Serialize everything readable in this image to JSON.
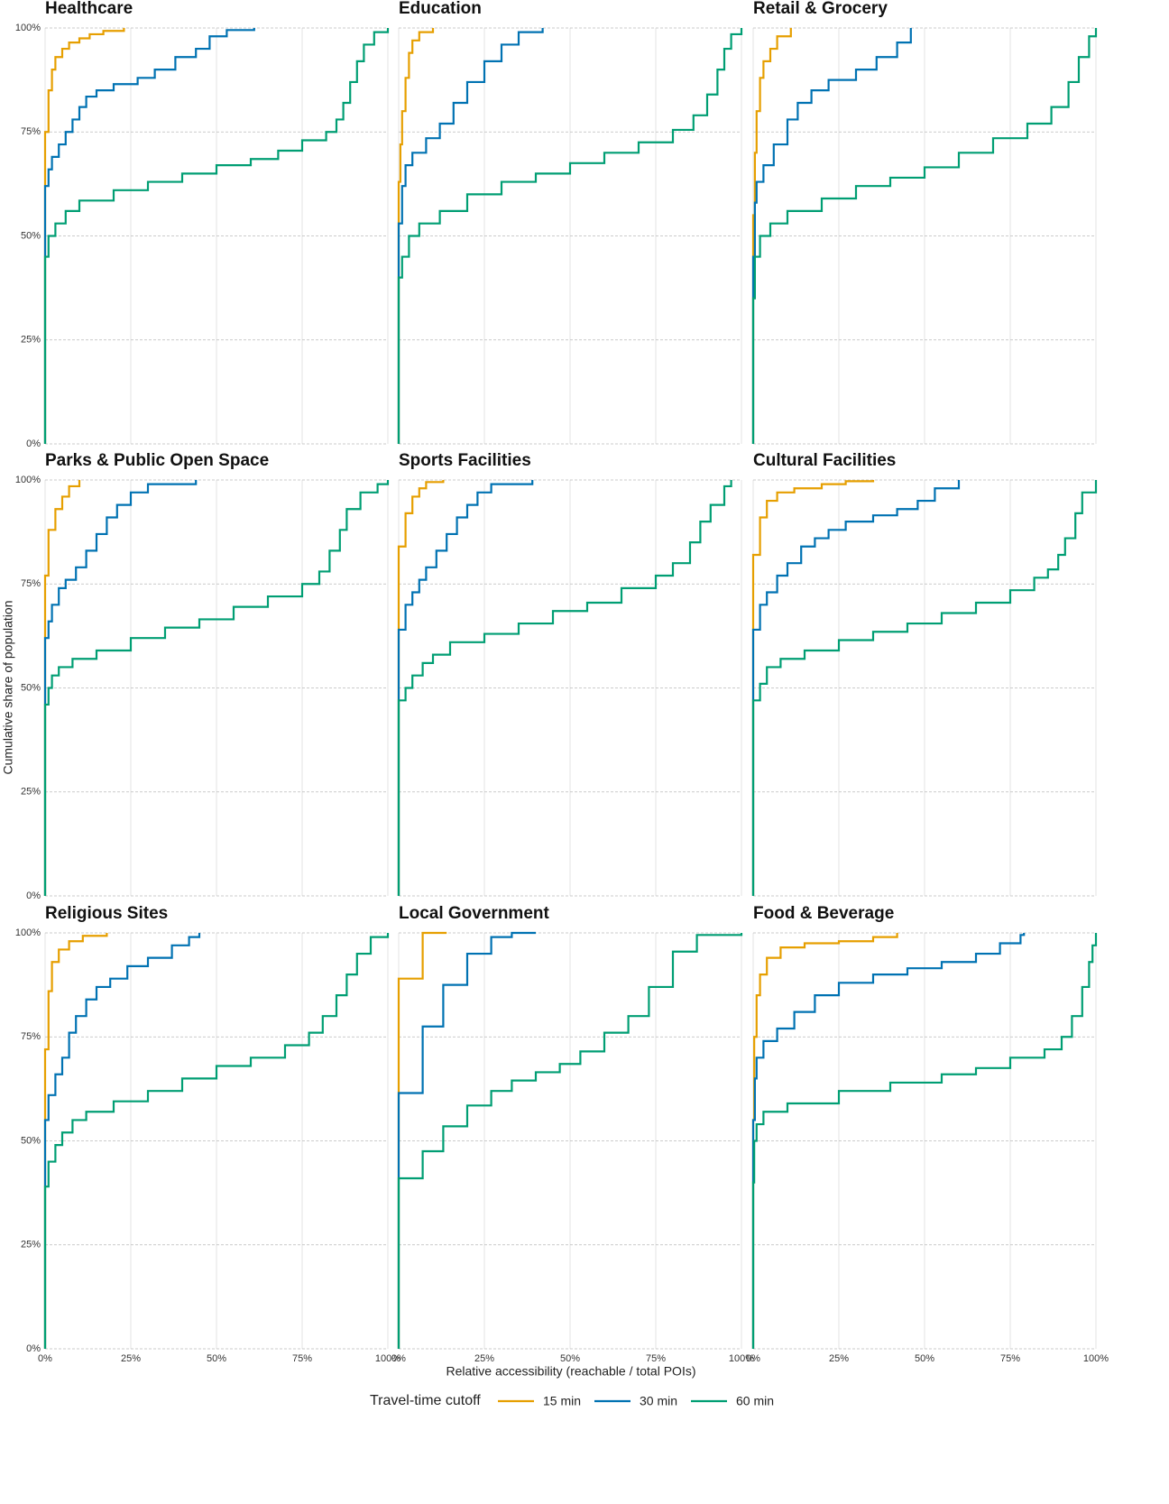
{
  "chart_data": {
    "type": "step",
    "y_label": "Cumulative share of population",
    "x_label": "Relative accessibility (reachable / total POIs)",
    "legend_title": "Travel-time cutoff",
    "series": [
      {
        "name": "15 min",
        "color": "#E69F00"
      },
      {
        "name": "30 min",
        "color": "#0072B2"
      },
      {
        "name": "60 min",
        "color": "#009E73"
      }
    ],
    "xlim": [
      0,
      100
    ],
    "ylim": [
      0,
      100
    ],
    "xticks": [
      {
        "value": 0,
        "label": "0%"
      },
      {
        "value": 25,
        "label": "25%"
      },
      {
        "value": 50,
        "label": "50%"
      },
      {
        "value": 75,
        "label": "75%"
      },
      {
        "value": 100,
        "label": "100%"
      }
    ],
    "yticks": [
      {
        "value": 0,
        "label": "0%"
      },
      {
        "value": 25,
        "label": "25%"
      },
      {
        "value": 50,
        "label": "50%"
      },
      {
        "value": 75,
        "label": "75%"
      },
      {
        "value": 100,
        "label": "100%"
      }
    ],
    "grid": true,
    "facets": [
      {
        "title": "Healthcare",
        "series": [
          {
            "x": [
              0,
              0,
              1,
              2,
              3,
              5,
              7,
              10,
              13,
              17,
              23
            ],
            "values": [
              0,
              75,
              85,
              90,
              93,
              95,
              96.5,
              97.5,
              98.5,
              99.3,
              100
            ]
          },
          {
            "x": [
              0,
              0,
              1,
              2,
              4,
              6,
              8,
              10,
              12,
              15,
              20,
              27,
              32,
              38,
              44,
              48,
              53,
              61
            ],
            "values": [
              0,
              62,
              66,
              69,
              72,
              75,
              78,
              81,
              83.5,
              85,
              86.5,
              88,
              90,
              93,
              95,
              98,
              99.5,
              100
            ]
          },
          {
            "x": [
              0,
              0,
              1,
              3,
              6,
              10,
              20,
              30,
              40,
              50,
              60,
              68,
              75,
              82,
              85,
              87,
              89,
              91,
              93,
              96,
              100
            ],
            "values": [
              0,
              45,
              50,
              53,
              56,
              58.5,
              61,
              63,
              65,
              67,
              68.5,
              70.5,
              73,
              75,
              78,
              82,
              87,
              92,
              96,
              99,
              100
            ]
          }
        ]
      },
      {
        "title": "Education",
        "series": [
          {
            "x": [
              0,
              0,
              0.5,
              1,
              2,
              3,
              4,
              6,
              10
            ],
            "values": [
              0,
              63,
              72,
              80,
              88,
              94,
              97,
              99,
              100
            ]
          },
          {
            "x": [
              0,
              0,
              1,
              2,
              4,
              8,
              12,
              16,
              20,
              25,
              30,
              35,
              42
            ],
            "values": [
              0,
              53,
              62,
              67,
              70,
              73.5,
              77,
              82,
              87,
              92,
              96,
              99,
              100
            ]
          },
          {
            "x": [
              0,
              0,
              1,
              3,
              6,
              12,
              20,
              30,
              40,
              50,
              60,
              70,
              80,
              86,
              90,
              93,
              95,
              97,
              100
            ],
            "values": [
              0,
              40,
              45,
              50,
              53,
              56,
              60,
              63,
              65,
              67.5,
              70,
              72.5,
              75.5,
              79,
              84,
              90,
              95,
              98.5,
              100
            ]
          }
        ]
      },
      {
        "title": "Retail & Grocery",
        "series": [
          {
            "x": [
              0,
              0,
              0.5,
              1,
              2,
              3,
              5,
              7,
              11
            ],
            "values": [
              0,
              55,
              70,
              80,
              88,
              92,
              95,
              98,
              100
            ]
          },
          {
            "x": [
              0,
              0,
              0.5,
              1,
              3,
              6,
              10,
              13,
              17,
              22,
              30,
              36,
              42,
              46
            ],
            "values": [
              0,
              45,
              58,
              63,
              67,
              72,
              78,
              82,
              85,
              87.5,
              90,
              93,
              96.5,
              100
            ]
          },
          {
            "x": [
              0,
              0,
              0.5,
              2,
              5,
              10,
              20,
              30,
              40,
              50,
              60,
              70,
              80,
              87,
              92,
              95,
              98,
              100
            ],
            "values": [
              0,
              35,
              45,
              50,
              53,
              56,
              59,
              62,
              64,
              66.5,
              70,
              73.5,
              77,
              81,
              87,
              93,
              98,
              100
            ]
          }
        ]
      },
      {
        "title": "Parks & Public Open Space",
        "series": [
          {
            "x": [
              0,
              0,
              1,
              3,
              5,
              7,
              10
            ],
            "values": [
              0,
              77,
              88,
              93,
              96,
              98.5,
              100
            ]
          },
          {
            "x": [
              0,
              0,
              1,
              2,
              4,
              6,
              9,
              12,
              15,
              18,
              21,
              25,
              30,
              44
            ],
            "values": [
              0,
              62,
              66,
              70,
              74,
              76,
              79,
              83,
              87,
              91,
              94,
              97,
              99,
              100
            ]
          },
          {
            "x": [
              0,
              0,
              1,
              2,
              4,
              8,
              15,
              25,
              35,
              45,
              55,
              65,
              75,
              80,
              83,
              86,
              88,
              92,
              97,
              100
            ],
            "values": [
              0,
              46,
              50,
              53,
              55,
              57,
              59,
              62,
              64.5,
              66.5,
              69.5,
              72,
              75,
              78,
              83,
              88,
              93,
              97,
              99,
              100
            ]
          }
        ]
      },
      {
        "title": "Sports Facilities",
        "series": [
          {
            "x": [
              0,
              0,
              2,
              4,
              6,
              8,
              13
            ],
            "values": [
              0,
              84,
              92,
              96,
              98,
              99.5,
              100
            ]
          },
          {
            "x": [
              0,
              0,
              2,
              4,
              6,
              8,
              11,
              14,
              17,
              20,
              23,
              27,
              39
            ],
            "values": [
              0,
              64,
              70,
              73,
              76,
              79,
              83,
              87,
              91,
              94,
              97,
              99,
              100
            ]
          },
          {
            "x": [
              0,
              0,
              2,
              4,
              7,
              10,
              15,
              25,
              35,
              45,
              55,
              65,
              75,
              80,
              85,
              88,
              91,
              95,
              97
            ],
            "values": [
              0,
              47,
              50,
              53,
              56,
              58,
              61,
              63,
              65.5,
              68.5,
              70.5,
              74,
              77,
              80,
              85,
              90,
              94,
              98.5,
              100
            ]
          }
        ]
      },
      {
        "title": "Cultural Facilities",
        "series": [
          {
            "x": [
              0,
              0,
              2,
              4,
              7,
              12,
              20,
              27,
              35
            ],
            "values": [
              0,
              82,
              91,
              95,
              97,
              98,
              99,
              99.7,
              100
            ]
          },
          {
            "x": [
              0,
              0,
              2,
              4,
              7,
              10,
              14,
              18,
              22,
              27,
              35,
              42,
              48,
              53,
              60
            ],
            "values": [
              0,
              64,
              70,
              73,
              77,
              80,
              84,
              86,
              88,
              90,
              91.5,
              93,
              95,
              98,
              100
            ]
          },
          {
            "x": [
              0,
              0,
              2,
              4,
              8,
              15,
              25,
              35,
              45,
              55,
              65,
              75,
              82,
              86,
              89,
              91,
              94,
              96,
              100
            ],
            "values": [
              0,
              47,
              51,
              55,
              57,
              59,
              61.5,
              63.5,
              65.5,
              68,
              70.5,
              73.5,
              76.5,
              78.5,
              82,
              86,
              92,
              97,
              100
            ]
          }
        ]
      },
      {
        "title": "Religious Sites",
        "series": [
          {
            "x": [
              0,
              0,
              1,
              2,
              4,
              7,
              11,
              18
            ],
            "values": [
              0,
              72,
              86,
              93,
              96,
              98,
              99.3,
              100
            ]
          },
          {
            "x": [
              0,
              0,
              1,
              3,
              5,
              7,
              9,
              12,
              15,
              19,
              24,
              30,
              37,
              42,
              45
            ],
            "values": [
              0,
              55,
              61,
              66,
              70,
              76,
              80,
              84,
              87,
              89,
              92,
              94,
              97,
              99,
              100
            ]
          },
          {
            "x": [
              0,
              0,
              1,
              3,
              5,
              8,
              12,
              20,
              30,
              40,
              50,
              60,
              70,
              77,
              81,
              85,
              88,
              91,
              95,
              100
            ],
            "values": [
              0,
              39,
              45,
              49,
              52,
              55,
              57,
              59.5,
              62,
              65,
              68,
              70,
              73,
              76,
              80,
              85,
              90,
              95,
              99,
              100
            ]
          }
        ]
      },
      {
        "title": "Local Government",
        "series": [
          {
            "x": [
              0,
              0,
              7,
              14
            ],
            "values": [
              0,
              89,
              100,
              100
            ]
          },
          {
            "x": [
              0,
              0,
              7,
              13,
              20,
              27,
              33,
              40
            ],
            "values": [
              0,
              61.5,
              77.5,
              87.5,
              95,
              99,
              100,
              100
            ]
          },
          {
            "x": [
              0,
              0,
              7,
              13,
              20,
              27,
              33,
              40,
              47,
              53,
              60,
              67,
              73,
              80,
              87,
              100
            ],
            "values": [
              0,
              41,
              47.5,
              53.5,
              58.5,
              62,
              64.5,
              66.5,
              68.5,
              71.5,
              76,
              80,
              87,
              95.5,
              99.5,
              100
            ]
          }
        ]
      },
      {
        "title": "Food & Beverage",
        "series": [
          {
            "x": [
              0,
              0,
              0.3,
              1,
              2,
              4,
              8,
              15,
              25,
              35,
              42
            ],
            "values": [
              0,
              55,
              75,
              85,
              90,
              94,
              96.5,
              97.5,
              98,
              99,
              100
            ]
          },
          {
            "x": [
              0,
              0,
              0.5,
              1,
              3,
              7,
              12,
              18,
              25,
              35,
              45,
              55,
              65,
              72,
              78,
              79
            ],
            "values": [
              0,
              55,
              65,
              70,
              74,
              77,
              81,
              85,
              88,
              90,
              91.5,
              93,
              95,
              97.5,
              99.5,
              100
            ]
          },
          {
            "x": [
              0,
              0,
              0.3,
              1,
              3,
              10,
              25,
              40,
              55,
              65,
              75,
              85,
              90,
              93,
              96,
              98,
              99,
              100
            ],
            "values": [
              0,
              40,
              50,
              54,
              57,
              59,
              62,
              64,
              66,
              67.5,
              70,
              72,
              75,
              80,
              87,
              93,
              97,
              100
            ]
          }
        ]
      }
    ]
  }
}
